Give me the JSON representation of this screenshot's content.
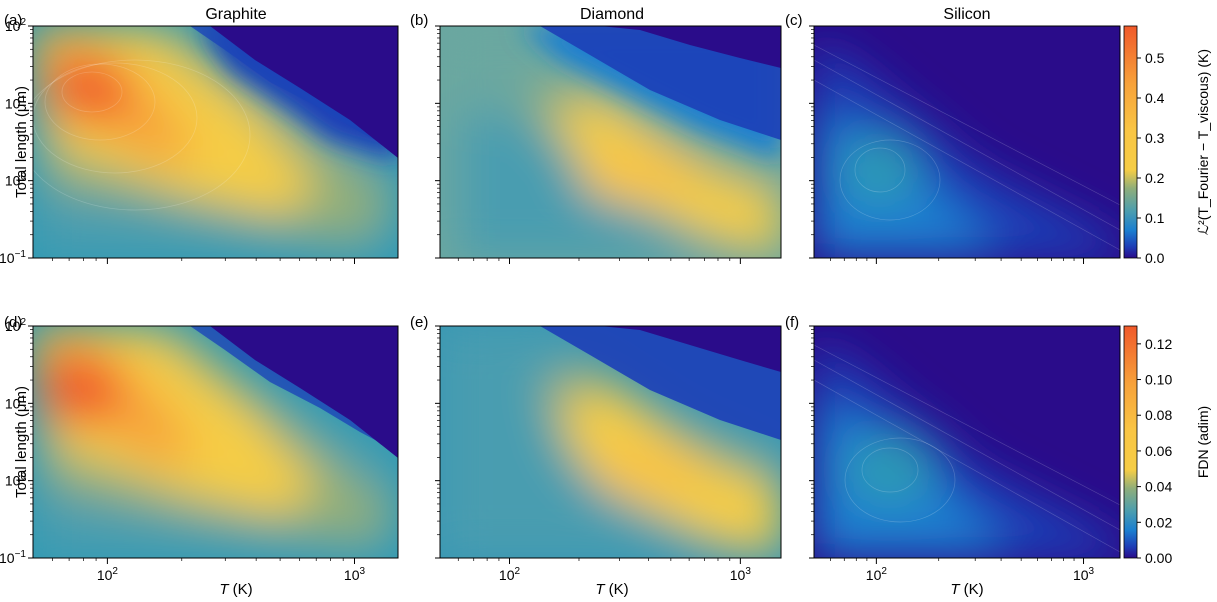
{
  "figure": {
    "column_titles": [
      "Graphite",
      "Diamond",
      "Silicon"
    ],
    "panel_labels": [
      "(a)",
      "(b)",
      "(c)",
      "(d)",
      "(e)",
      "(f)"
    ],
    "ylabel": "Total length (μm)",
    "xlabel_italic": "T",
    "xlabel_rest": " (K)",
    "y_ticks": [
      "10",
      "10",
      "10",
      "10"
    ],
    "y_tick_exps": [
      "2",
      "1",
      "0",
      "−1"
    ],
    "x_ticks": [
      "10",
      "10"
    ],
    "x_tick_exps": [
      "2",
      "3"
    ],
    "colorbar_top": {
      "label": "ℒ²(T_Fourier − T_viscous) (K)",
      "ticks": [
        "0.5",
        "0.4",
        "0.3",
        "0.2",
        "0.1",
        "0.0"
      ]
    },
    "colorbar_bottom": {
      "label": "FDN (adim)",
      "ticks": [
        "0.12",
        "0.10",
        "0.08",
        "0.06",
        "0.04",
        "0.02",
        "0.00"
      ]
    }
  },
  "chart_data": [
    {
      "type": "heatmap",
      "panel": "(a)",
      "title": "Graphite",
      "x": "T (K)",
      "xlim": [
        50,
        1500
      ],
      "xscale": "log",
      "ylim": [
        0.1,
        100
      ],
      "yscale": "log",
      "zlim": [
        0,
        0.58
      ],
      "peak": {
        "T": 75,
        "L": 15,
        "value": 0.55
      },
      "ridge": [
        [
          60,
          40
        ],
        [
          100,
          5
        ],
        [
          200,
          1
        ],
        [
          400,
          0.5
        ],
        [
          800,
          0.2
        ]
      ]
    },
    {
      "type": "heatmap",
      "panel": "(b)",
      "title": "Diamond",
      "x": "T (K)",
      "xlim": [
        50,
        1500
      ],
      "xscale": "log",
      "ylim": [
        0.1,
        100
      ],
      "yscale": "log",
      "zlim": [
        0,
        0.58
      ],
      "peak": {
        "T": 300,
        "L": 1.5,
        "value": 0.25
      },
      "ridge": [
        [
          150,
          10
        ],
        [
          300,
          1.5
        ],
        [
          600,
          0.5
        ],
        [
          1400,
          0.3
        ]
      ]
    },
    {
      "type": "heatmap",
      "panel": "(c)",
      "title": "Silicon",
      "x": "T (K)",
      "xlim": [
        50,
        1500
      ],
      "xscale": "log",
      "ylim": [
        0.1,
        100
      ],
      "yscale": "log",
      "zlim": [
        0,
        0.58
      ],
      "peak": {
        "T": 80,
        "L": 1.5,
        "value": 0.08
      },
      "ridge": [
        [
          60,
          5
        ],
        [
          100,
          1
        ],
        [
          200,
          0.3
        ]
      ]
    },
    {
      "type": "heatmap",
      "panel": "(d)",
      "title": "Graphite",
      "x": "T (K)",
      "xlim": [
        50,
        1500
      ],
      "xscale": "log",
      "ylim": [
        0.1,
        100
      ],
      "yscale": "log",
      "zlim": [
        0,
        0.13
      ],
      "peak": {
        "T": 75,
        "L": 15,
        "value": 0.12
      },
      "ridge": [
        [
          60,
          40
        ],
        [
          100,
          5
        ],
        [
          200,
          1
        ],
        [
          400,
          0.5
        ],
        [
          1000,
          0.3
        ]
      ]
    },
    {
      "type": "heatmap",
      "panel": "(e)",
      "title": "Diamond",
      "x": "T (K)",
      "xlim": [
        50,
        1500
      ],
      "xscale": "log",
      "ylim": [
        0.1,
        100
      ],
      "yscale": "log",
      "zlim": [
        0,
        0.13
      ],
      "peak": {
        "T": 300,
        "L": 1.5,
        "value": 0.05
      },
      "ridge": [
        [
          150,
          10
        ],
        [
          300,
          1.5
        ],
        [
          600,
          0.5
        ],
        [
          1400,
          0.3
        ]
      ]
    },
    {
      "type": "heatmap",
      "panel": "(f)",
      "title": "Silicon",
      "x": "T (K)",
      "xlim": [
        50,
        1500
      ],
      "xscale": "log",
      "ylim": [
        0.1,
        100
      ],
      "yscale": "log",
      "zlim": [
        0,
        0.13
      ],
      "peak": {
        "T": 90,
        "L": 2,
        "value": 0.025
      },
      "ridge": [
        [
          60,
          5
        ],
        [
          100,
          1.5
        ],
        [
          200,
          0.4
        ]
      ]
    }
  ]
}
